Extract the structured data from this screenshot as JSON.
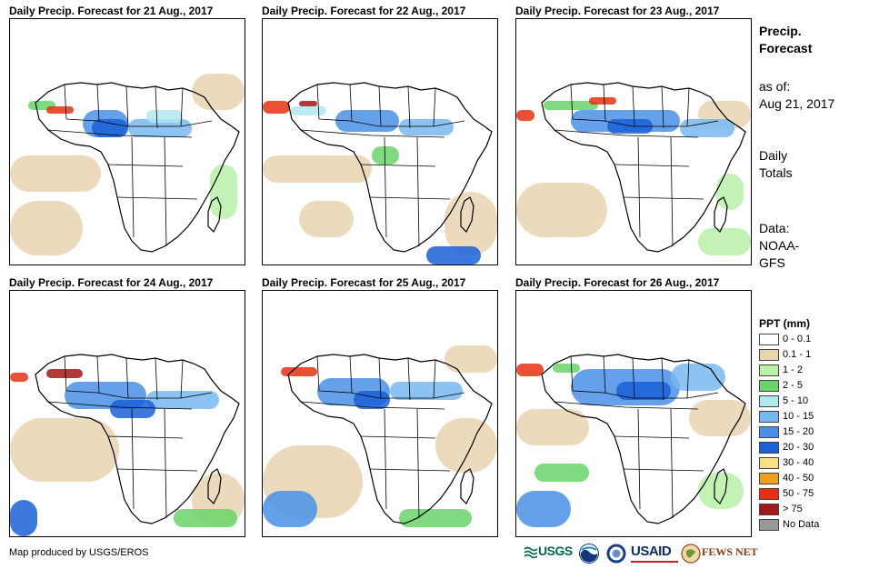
{
  "panels": [
    {
      "title": "Daily Precip. Forecast for 21 Aug., 2017"
    },
    {
      "title": "Daily Precip. Forecast for 22 Aug., 2017"
    },
    {
      "title": "Daily Precip. Forecast for 23 Aug., 2017"
    },
    {
      "title": "Daily Precip. Forecast for 24 Aug., 2017"
    },
    {
      "title": "Daily Precip. Forecast for 25 Aug., 2017"
    },
    {
      "title": "Daily Precip. Forecast for 26 Aug., 2017"
    }
  ],
  "sidebar": {
    "title_line1": "Precip.",
    "title_line2": "Forecast",
    "asof_label": "as of:",
    "asof_date": "Aug 21, 2017",
    "totals_line1": "Daily",
    "totals_line2": "Totals",
    "data_line1": "Data:",
    "data_line2": "NOAA-",
    "data_line3": "GFS"
  },
  "legend": {
    "title": "PPT (mm)",
    "items": [
      {
        "label": "0 - 0.1",
        "color": "#ffffff"
      },
      {
        "label": "0.1 - 1",
        "color": "#e8d5b0"
      },
      {
        "label": "1 - 2",
        "color": "#b8f0a8"
      },
      {
        "label": "2 - 5",
        "color": "#6ad46a"
      },
      {
        "label": "5 - 10",
        "color": "#b0e8f0"
      },
      {
        "label": "10 - 15",
        "color": "#78b8f0"
      },
      {
        "label": "15 - 20",
        "color": "#4a90e8"
      },
      {
        "label": "20 - 30",
        "color": "#1a60d8"
      },
      {
        "label": "30 - 40",
        "color": "#f8e088"
      },
      {
        "label": "40 - 50",
        "color": "#f0a020"
      },
      {
        "label": "50 - 75",
        "color": "#e83010"
      },
      {
        "label": "> 75",
        "color": "#a01818"
      },
      {
        "label": "No Data",
        "color": "#999999"
      }
    ]
  },
  "credit": "Map produced by USGS/EROS",
  "logos": {
    "usgs": "USGS",
    "usaid": "USAID",
    "fewsnet": "FEWS NET",
    "usgs_icon": "usgs-logo",
    "noaa_icon": "noaa-logo",
    "dhs_icon": "seal-logo"
  }
}
